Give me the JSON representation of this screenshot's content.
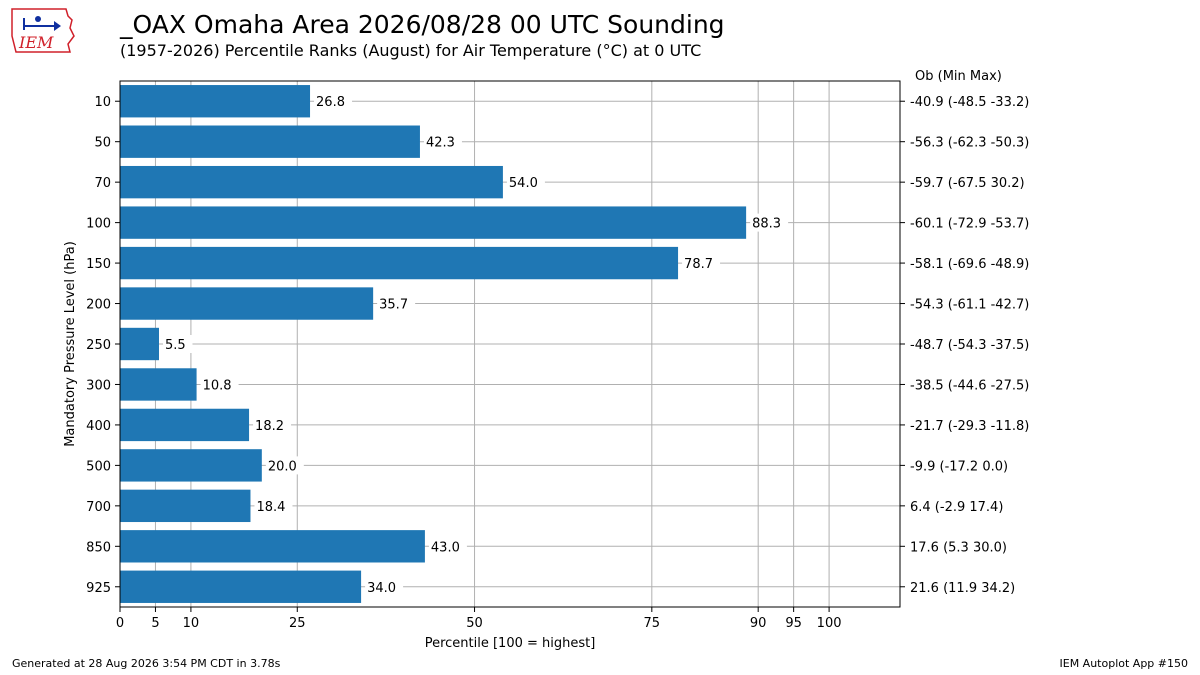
{
  "logo_text": "IEM",
  "title": "_OAX Omaha Area  2026/08/28 00 UTC Sounding",
  "subtitle": "(1957-2026) Percentile Ranks (August) for Air Temperature (°C) at 0 UTC",
  "right_header": "Ob  (Min  Max)",
  "footer": {
    "left": "Generated at 28 Aug 2026 3:54 PM CDT in 3.78s",
    "right": "IEM Autoplot App #150"
  },
  "colors": {
    "bar": "#1f77b4",
    "grid": "#b0b0b0"
  },
  "chart_data": {
    "type": "bar",
    "orientation": "horizontal",
    "xlabel": "Percentile [100 = highest]",
    "ylabel": "Mandatory Pressure Level (hPa)",
    "xlim": [
      0,
      110
    ],
    "xticks": [
      0,
      5,
      10,
      25,
      50,
      75,
      90,
      95,
      100
    ],
    "grid": true,
    "categories": [
      "10",
      "50",
      "70",
      "100",
      "150",
      "200",
      "250",
      "300",
      "400",
      "500",
      "700",
      "850",
      "925"
    ],
    "values": [
      26.8,
      42.3,
      54.0,
      88.3,
      78.7,
      35.7,
      5.5,
      10.8,
      18.2,
      20.0,
      18.4,
      43.0,
      34.0
    ],
    "value_labels": [
      "26.8",
      "42.3",
      "54.0",
      "88.3",
      "78.7",
      "35.7",
      "5.5",
      "10.8",
      "18.2",
      "20.0",
      "18.4",
      "43.0",
      "34.0"
    ],
    "right_labels": [
      "-40.9 (-48.5 -33.2)",
      "-56.3 (-62.3 -50.3)",
      "-59.7 (-67.5 30.2)",
      "-60.1 (-72.9 -53.7)",
      "-58.1 (-69.6 -48.9)",
      "-54.3 (-61.1 -42.7)",
      "-48.7 (-54.3 -37.5)",
      "-38.5 (-44.6 -27.5)",
      "-21.7 (-29.3 -11.8)",
      "-9.9 (-17.2 0.0)",
      "6.4 (-2.9 17.4)",
      "17.6 (5.3 30.0)",
      "21.6 (11.9 34.2)"
    ]
  }
}
